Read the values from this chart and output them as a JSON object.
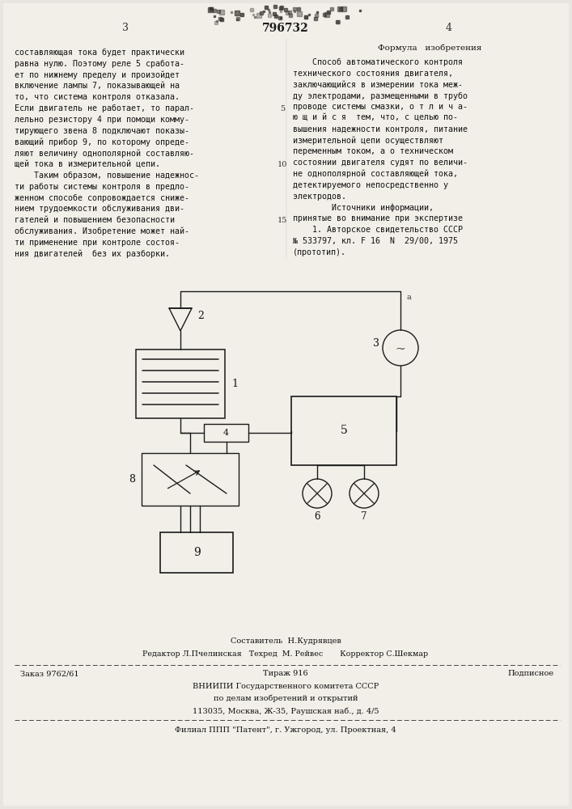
{
  "bg_color": "#e8e5e0",
  "page_color": "#f2efe8",
  "text_color": "#111111",
  "header_number": "796732",
  "header_page_left": "3",
  "header_page_right": "4",
  "left_col_lines": [
    "составляющая тока будет практически",
    "равна нулю. Поэтому реле 5 сработа-",
    "ет по нижнему пределу и произойдет",
    "включение лампы 7, показывающей на",
    "то, что система контроля отказала.",
    "Если двигатель не работает, то парал-",
    "лельно резистору 4 при помощи комму-",
    "тирующего звена 8 подключают показы-",
    "вающий прибор 9, по которому опреде-",
    "ляют величину однополярной составляю-",
    "щей тока в измерительной цепи.",
    "    Таким образом, повышение надежнос-",
    "ти работы системы контроля в предло-",
    "женном способе сопровождается сниже-",
    "нием трудоемкости обслуживания дви-",
    "гателей и повышением безопасности",
    "обслуживания. Изобретение может най-",
    "ти применение при контроле состоя-",
    "ния двигателей  без их разборки."
  ],
  "right_col_title": "Формула   изобретения",
  "right_col_lines": [
    "    Способ автоматического контроля",
    "технического состояния двигателя,",
    "заключающийся в измерении тока меж-",
    "ду электродами, размещенными в трубо",
    "проводе системы смазки, о т л и ч а-",
    "ю щ и й с я  тем, что, с целью по-",
    "вышения надежности контроля, питание",
    "измерительной цепи осуществляют",
    "переменным током, а о техническом",
    "состоянии двигателя судят по величи-",
    "не однополярной составляющей тока,",
    "детектируемого непосредственно у",
    "электродов.",
    "        Источники информации,",
    "принятые во внимание при экспертизе",
    "    1. Авторское свидетельство СССР",
    "№ 533797, кл. F 16  N  29/00, 1975",
    "(прототип)."
  ],
  "line_num_5_row": 5,
  "line_num_10_row": 10,
  "line_num_15_row": 15,
  "footer_composer": "Составитель  Н.Кудрявцев",
  "footer_editors": "Редактор Л.Пчелинская   Техред  М. Рейвес       Корректор С.Шекмар",
  "footer_order": "Заказ 9762/61",
  "footer_tirazh": "Тираж 916",
  "footer_podp": "Подписное",
  "footer_vniip1": "ВНИИПИ Государственного комитета СССР",
  "footer_vniip2": "по делам изобретений и открытий",
  "footer_addr": "113035, Москва, Ж-35, Раушская наб., д. 4/5",
  "footer_filial": "Филиал ППП \"Патент\", г. Ужгород, ул. Проектная, 4"
}
